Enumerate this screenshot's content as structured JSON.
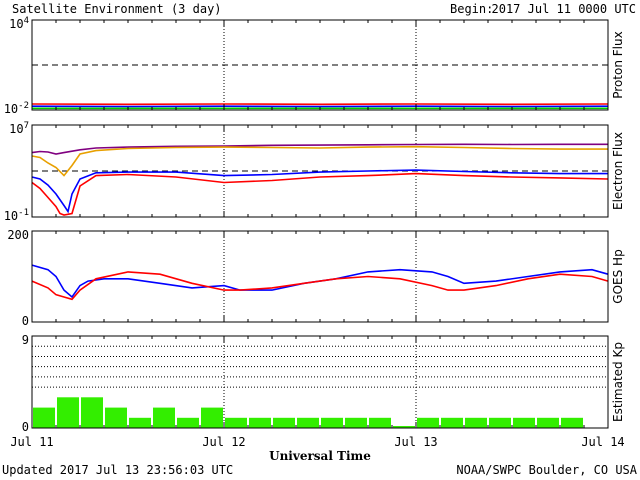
{
  "header": {
    "title": "Satellite Environment (3 day)",
    "begin_label": "Begin:",
    "begin_value": "2017 Jul 11 0000 UTC"
  },
  "footer": {
    "updated": "Updated 2017 Jul 13 23:56:03 UTC",
    "credit": "NOAA/SWPC Boulder, CO USA"
  },
  "chart_data": [
    {
      "type": "line",
      "ylabel": "Proton Flux",
      "yscale": "log",
      "ylim": [
        0.01,
        10000
      ],
      "tick_labels": [
        "10^4",
        "10^-2"
      ],
      "threshold": 10,
      "x_range_hours": [
        0,
        72
      ],
      "series": [
        {
          "color": "#ff0000",
          "values": [
            [
              0,
              0.025
            ],
            [
              12,
              0.024
            ],
            [
              24,
              0.025
            ],
            [
              36,
              0.024
            ],
            [
              48,
              0.025
            ],
            [
              60,
              0.024
            ],
            [
              72,
              0.025
            ]
          ]
        },
        {
          "color": "#0000ff",
          "values": [
            [
              0,
              0.018
            ],
            [
              12,
              0.017
            ],
            [
              24,
              0.018
            ],
            [
              36,
              0.017
            ],
            [
              48,
              0.018
            ],
            [
              60,
              0.017
            ],
            [
              72,
              0.018
            ]
          ]
        },
        {
          "color": "#00cc00",
          "values": [
            [
              0,
              0.013
            ],
            [
              12,
              0.013
            ],
            [
              24,
              0.013
            ],
            [
              36,
              0.013
            ],
            [
              48,
              0.013
            ],
            [
              60,
              0.013
            ],
            [
              72,
              0.013
            ]
          ]
        }
      ]
    },
    {
      "type": "line",
      "ylabel": "Electron Flux",
      "yscale": "log",
      "ylim": [
        0.1,
        10000000
      ],
      "tick_labels": [
        "10^7",
        "10^-1"
      ],
      "threshold": 1000,
      "x_range_hours": [
        0,
        72
      ],
      "series": [
        {
          "color": "#800080",
          "values": [
            [
              0,
              40000
            ],
            [
              1,
              50000
            ],
            [
              2,
              45000
            ],
            [
              3,
              30000
            ],
            [
              4,
              40000
            ],
            [
              6,
              70000
            ],
            [
              8,
              100000
            ],
            [
              12,
              120000
            ],
            [
              18,
              140000
            ],
            [
              24,
              150000
            ],
            [
              30,
              170000
            ],
            [
              36,
              180000
            ],
            [
              42,
              190000
            ],
            [
              48,
              200000
            ],
            [
              54,
              210000
            ],
            [
              60,
              200000
            ],
            [
              66,
              210000
            ],
            [
              72,
              210000
            ]
          ]
        },
        {
          "color": "#e8a000",
          "values": [
            [
              0,
              20000
            ],
            [
              1,
              15000
            ],
            [
              2,
              5000
            ],
            [
              3,
              2000
            ],
            [
              4,
              400
            ],
            [
              5,
              3000
            ],
            [
              6,
              30000
            ],
            [
              8,
              60000
            ],
            [
              12,
              90000
            ],
            [
              18,
              110000
            ],
            [
              24,
              120000
            ],
            [
              30,
              110000
            ],
            [
              36,
              100000
            ],
            [
              42,
              120000
            ],
            [
              48,
              130000
            ],
            [
              54,
              110000
            ],
            [
              60,
              90000
            ],
            [
              66,
              80000
            ],
            [
              72,
              80000
            ]
          ]
        },
        {
          "color": "#0000ff",
          "values": [
            [
              0,
              300
            ],
            [
              1,
              200
            ],
            [
              2,
              60
            ],
            [
              3,
              10
            ],
            [
              4,
              1
            ],
            [
              4.5,
              0.3
            ],
            [
              5,
              10
            ],
            [
              6,
              200
            ],
            [
              8,
              700
            ],
            [
              12,
              800
            ],
            [
              18,
              800
            ],
            [
              24,
              400
            ],
            [
              30,
              500
            ],
            [
              36,
              800
            ],
            [
              42,
              1000
            ],
            [
              48,
              1200
            ],
            [
              54,
              900
            ],
            [
              60,
              700
            ],
            [
              66,
              600
            ],
            [
              72,
              600
            ]
          ]
        },
        {
          "color": "#ff0000",
          "values": [
            [
              0,
              100
            ],
            [
              1,
              30
            ],
            [
              2,
              5
            ],
            [
              3,
              0.8
            ],
            [
              3.5,
              0.2
            ],
            [
              4,
              0.15
            ],
            [
              5,
              0.2
            ],
            [
              6,
              50
            ],
            [
              8,
              400
            ],
            [
              12,
              500
            ],
            [
              18,
              300
            ],
            [
              24,
              100
            ],
            [
              30,
              150
            ],
            [
              36,
              300
            ],
            [
              42,
              400
            ],
            [
              48,
              600
            ],
            [
              54,
              400
            ],
            [
              60,
              300
            ],
            [
              66,
              250
            ],
            [
              72,
              200
            ]
          ]
        }
      ]
    },
    {
      "type": "line",
      "ylabel": "GOES Hp",
      "ylim": [
        0,
        200
      ],
      "tick_labels": [
        "200",
        "0"
      ],
      "x_range_hours": [
        0,
        72
      ],
      "series": [
        {
          "color": "#0000ff",
          "values": [
            [
              0,
              125
            ],
            [
              2,
              115
            ],
            [
              3,
              100
            ],
            [
              4,
              70
            ],
            [
              5,
              55
            ],
            [
              6,
              80
            ],
            [
              7,
              90
            ],
            [
              9,
              95
            ],
            [
              12,
              95
            ],
            [
              16,
              85
            ],
            [
              20,
              75
            ],
            [
              24,
              80
            ],
            [
              26,
              70
            ],
            [
              30,
              70
            ],
            [
              34,
              85
            ],
            [
              38,
              95
            ],
            [
              42,
              110
            ],
            [
              46,
              115
            ],
            [
              50,
              110
            ],
            [
              52,
              100
            ],
            [
              54,
              85
            ],
            [
              58,
              90
            ],
            [
              62,
              100
            ],
            [
              66,
              110
            ],
            [
              70,
              115
            ],
            [
              72,
              105
            ]
          ]
        },
        {
          "color": "#ff0000",
          "values": [
            [
              0,
              90
            ],
            [
              2,
              75
            ],
            [
              3,
              60
            ],
            [
              4,
              55
            ],
            [
              5,
              50
            ],
            [
              6,
              70
            ],
            [
              8,
              95
            ],
            [
              12,
              110
            ],
            [
              16,
              105
            ],
            [
              20,
              85
            ],
            [
              24,
              70
            ],
            [
              26,
              70
            ],
            [
              30,
              75
            ],
            [
              34,
              85
            ],
            [
              38,
              95
            ],
            [
              42,
              100
            ],
            [
              46,
              95
            ],
            [
              50,
              80
            ],
            [
              52,
              70
            ],
            [
              54,
              70
            ],
            [
              58,
              80
            ],
            [
              62,
              95
            ],
            [
              66,
              105
            ],
            [
              70,
              100
            ],
            [
              72,
              90
            ]
          ]
        }
      ]
    },
    {
      "type": "bar",
      "ylabel": "Estimated Kp",
      "ylim": [
        0,
        9
      ],
      "tick_labels": [
        "9",
        "0"
      ],
      "gridlines": [
        4,
        5,
        6,
        7,
        8
      ],
      "color": "#33ee00",
      "interval_hours": 3,
      "values": [
        2,
        3,
        3,
        2,
        1,
        2,
        1,
        2,
        1,
        1,
        1,
        1,
        1,
        1,
        1,
        0.2,
        1,
        1,
        1,
        1,
        1,
        1,
        1,
        0
      ]
    }
  ],
  "xaxis": {
    "ticks": [
      "Jul 11",
      "Jul 12",
      "Jul 13",
      "Jul 14"
    ],
    "label": "Universal Time"
  }
}
